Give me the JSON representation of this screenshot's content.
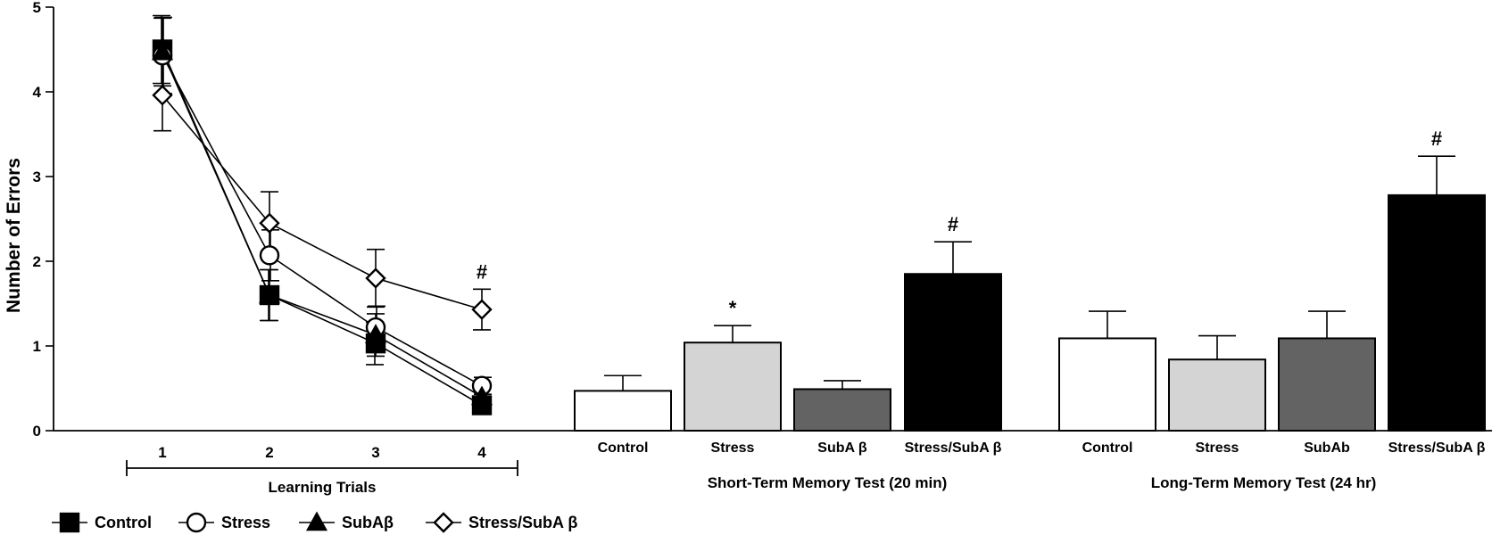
{
  "chart_data": {
    "y_axis": {
      "label": "Number of Errors",
      "ticks": [
        "0",
        "1",
        "2",
        "3",
        "4",
        "5"
      ],
      "ylim": [
        0,
        5
      ]
    },
    "line_panel": {
      "type": "line",
      "xlabel": "Learning Trials",
      "x": [
        "1",
        "2",
        "3",
        "4"
      ],
      "series": [
        {
          "name": "Control",
          "marker": "filled-square",
          "values": [
            4.5,
            1.6,
            1.03,
            0.3
          ],
          "errors": [
            0.4,
            0.3,
            0.25,
            0.1
          ]
        },
        {
          "name": "Stress",
          "marker": "open-circle",
          "values": [
            4.43,
            2.07,
            1.22,
            0.53
          ],
          "errors": [
            0.45,
            0.3,
            0.25,
            0.1
          ]
        },
        {
          "name": "SubAβ",
          "marker": "filled-triangle",
          "values": [
            4.47,
            1.6,
            1.13,
            0.4
          ],
          "errors": [
            0.4,
            0.3,
            0.25,
            0.1
          ]
        },
        {
          "name": "Stress/SubA β",
          "marker": "open-diamond",
          "values": [
            3.96,
            2.45,
            1.8,
            1.43
          ],
          "errors": [
            0.42,
            0.37,
            0.34,
            0.24
          ]
        }
      ],
      "annotations": [
        {
          "x": "4",
          "text": "#"
        }
      ]
    },
    "bar_panels": [
      {
        "type": "bar",
        "title": "Short-Term Memory Test (20 min)",
        "categories": [
          "Control",
          "Stress",
          "SubA β",
          "Stress/SubA β"
        ],
        "values": [
          0.47,
          1.04,
          0.49,
          1.85
        ],
        "errors": [
          0.18,
          0.2,
          0.1,
          0.38
        ],
        "fills": [
          "#ffffff",
          "#d4d4d4",
          "#636363",
          "#000000"
        ],
        "annotations": [
          "",
          "*",
          "",
          "#"
        ]
      },
      {
        "type": "bar",
        "title": "Long-Term Memory Test (24 hr)",
        "categories": [
          "Control",
          "Stress",
          "SubAb",
          "Stress/SubA β"
        ],
        "values": [
          1.09,
          0.84,
          1.09,
          2.78
        ],
        "errors": [
          0.32,
          0.28,
          0.32,
          0.46
        ],
        "fills": [
          "#ffffff",
          "#d4d4d4",
          "#636363",
          "#000000"
        ],
        "annotations": [
          "",
          "",
          "",
          "#"
        ]
      }
    ],
    "legend": {
      "placement": "bottom-left",
      "entries": [
        {
          "label": "Control",
          "marker": "filled-square"
        },
        {
          "label": "Stress",
          "marker": "open-circle"
        },
        {
          "label": "SubAβ",
          "marker": "filled-triangle"
        },
        {
          "label": "Stress/SubA β",
          "marker": "open-diamond"
        }
      ]
    }
  }
}
